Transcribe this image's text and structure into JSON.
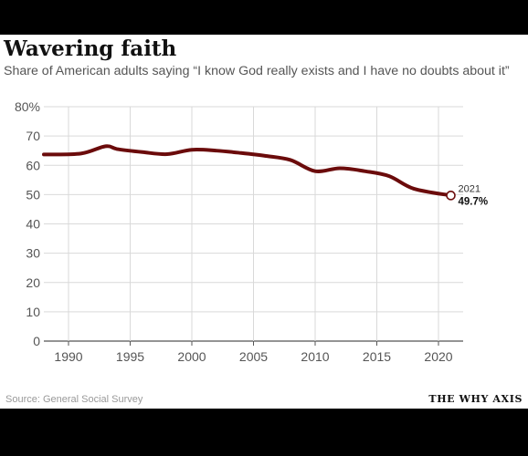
{
  "brand": "THE WHY AXIS",
  "source": "Source: General Social Survey",
  "chart_data": {
    "type": "line",
    "title": "Wavering faith",
    "subtitle": "Share of American adults saying “I know God really exists and I have no doubts about it”",
    "xlabel": "",
    "ylabel": "",
    "xlim": [
      1988,
      2022
    ],
    "ylim": [
      0,
      80
    ],
    "x_ticks": [
      1990,
      1995,
      2000,
      2005,
      2010,
      2015,
      2020
    ],
    "y_ticks": [
      0,
      10,
      20,
      30,
      40,
      50,
      60,
      70,
      80
    ],
    "y_tick_labels": [
      "0",
      "10",
      "20",
      "30",
      "40",
      "50",
      "60",
      "70",
      "80%"
    ],
    "grid": true,
    "legend": "none",
    "series": [
      {
        "color": "#6b0b0b",
        "x": [
          1988,
          1991,
          1993,
          1994,
          1996,
          1998,
          2000,
          2002,
          2004,
          2006,
          2008,
          2010,
          2012,
          2014,
          2016,
          2018,
          2021
        ],
        "y": [
          63.7,
          64.0,
          66.5,
          65.5,
          64.5,
          63.8,
          65.3,
          65.0,
          64.2,
          63.2,
          61.8,
          58.0,
          59.0,
          58.0,
          56.3,
          52.0,
          49.7
        ]
      }
    ],
    "annotation": {
      "year": "2021",
      "value": "49.7%",
      "x": 2021,
      "y": 49.7
    }
  }
}
